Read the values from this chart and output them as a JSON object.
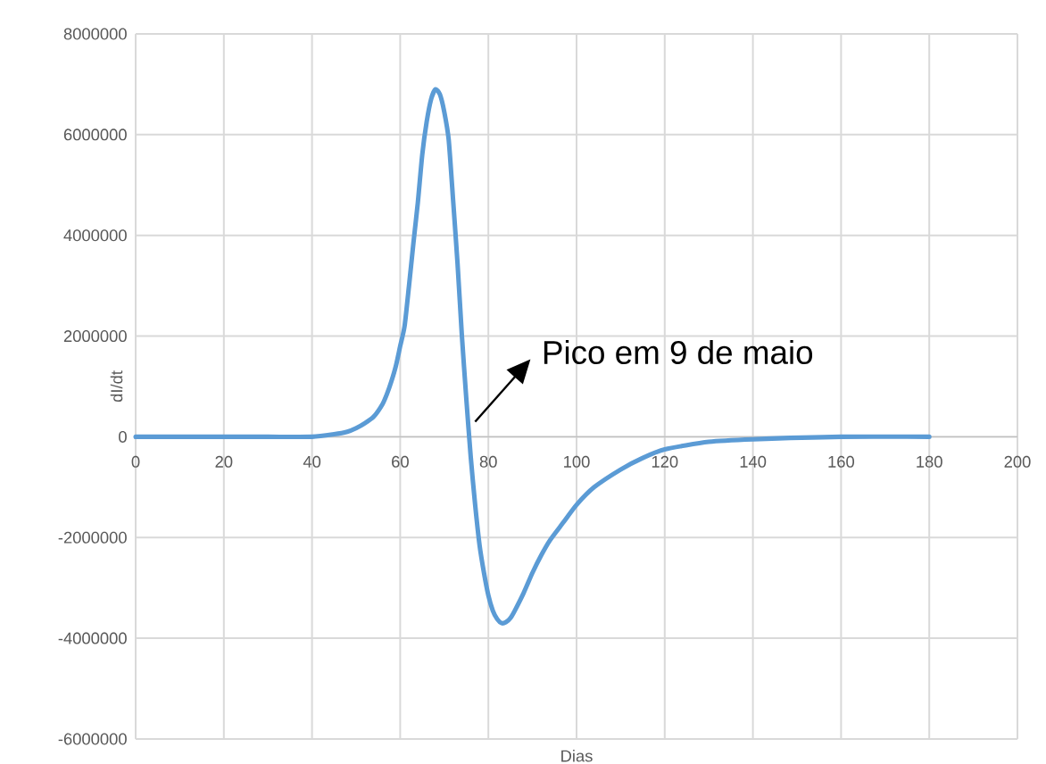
{
  "chart_data": {
    "type": "line",
    "xlabel": "Dias",
    "ylabel": "dI/dt",
    "annotations": [
      {
        "text": "Pico em 9 de maio",
        "x": 77,
        "y": 300000
      }
    ],
    "x": [
      0,
      10,
      20,
      30,
      40,
      45,
      48,
      50,
      52,
      54,
      56,
      57,
      58,
      59,
      60,
      61,
      62,
      63,
      64,
      65,
      66,
      67,
      68,
      69,
      70,
      71,
      72,
      73,
      74,
      75,
      76,
      77,
      78,
      79,
      80,
      81,
      82,
      83,
      84,
      85,
      86,
      88,
      90,
      92,
      94,
      97,
      100,
      104,
      110,
      115,
      120,
      130,
      140,
      160,
      180
    ],
    "series": [
      {
        "color": "#5b9bd5",
        "values": [
          0,
          0,
          0,
          0,
          0,
          50000,
          100000,
          170000,
          270000,
          400000,
          650000,
          850000,
          1100000,
          1400000,
          1800000,
          2200000,
          3000000,
          3850000,
          4650000,
          5600000,
          6250000,
          6700000,
          6900000,
          6800000,
          6450000,
          5900000,
          4700000,
          3450000,
          2000000,
          750000,
          -400000,
          -1350000,
          -2150000,
          -2700000,
          -3150000,
          -3450000,
          -3620000,
          -3700000,
          -3680000,
          -3600000,
          -3450000,
          -3100000,
          -2700000,
          -2350000,
          -2050000,
          -1700000,
          -1350000,
          -1000000,
          -650000,
          -420000,
          -250000,
          -100000,
          -50000,
          0,
          0
        ]
      }
    ],
    "xlim": [
      0,
      200
    ],
    "ylim": [
      -6000000,
      8000000
    ],
    "xticks": [
      0,
      20,
      40,
      60,
      80,
      100,
      120,
      140,
      160,
      180,
      200
    ],
    "yticks": [
      -6000000,
      -4000000,
      -2000000,
      0,
      2000000,
      4000000,
      6000000,
      8000000
    ],
    "grid": true
  }
}
